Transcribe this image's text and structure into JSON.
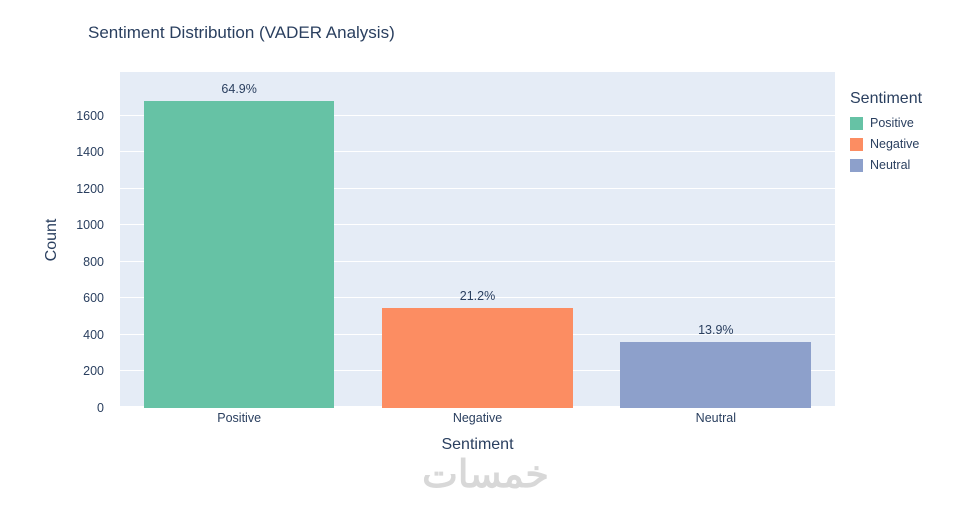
{
  "title": "Sentiment Distribution (VADER Analysis)",
  "watermark": "خمسات",
  "legend": {
    "title": "Sentiment",
    "items": [
      {
        "label": "Positive",
        "color": "#66c2a5"
      },
      {
        "label": "Negative",
        "color": "#fc8d62"
      },
      {
        "label": "Neutral",
        "color": "#8da0cb"
      }
    ]
  },
  "chart_data": {
    "type": "bar",
    "title": "Sentiment Distribution (VADER Analysis)",
    "xlabel": "Sentiment",
    "ylabel": "Count",
    "categories": [
      "Positive",
      "Negative",
      "Neutral"
    ],
    "values": [
      1681,
      549,
      360
    ],
    "bar_labels": [
      "64.9%",
      "21.2%",
      "13.9%"
    ],
    "colors": [
      "#66c2a5",
      "#fc8d62",
      "#8da0cb"
    ],
    "ylim": [
      0,
      1840
    ],
    "yticks": [
      0,
      200,
      400,
      600,
      800,
      1000,
      1200,
      1400,
      1600
    ],
    "grid": true,
    "plot_bgcolor": "#e5ecf6",
    "legend_position": "right"
  }
}
